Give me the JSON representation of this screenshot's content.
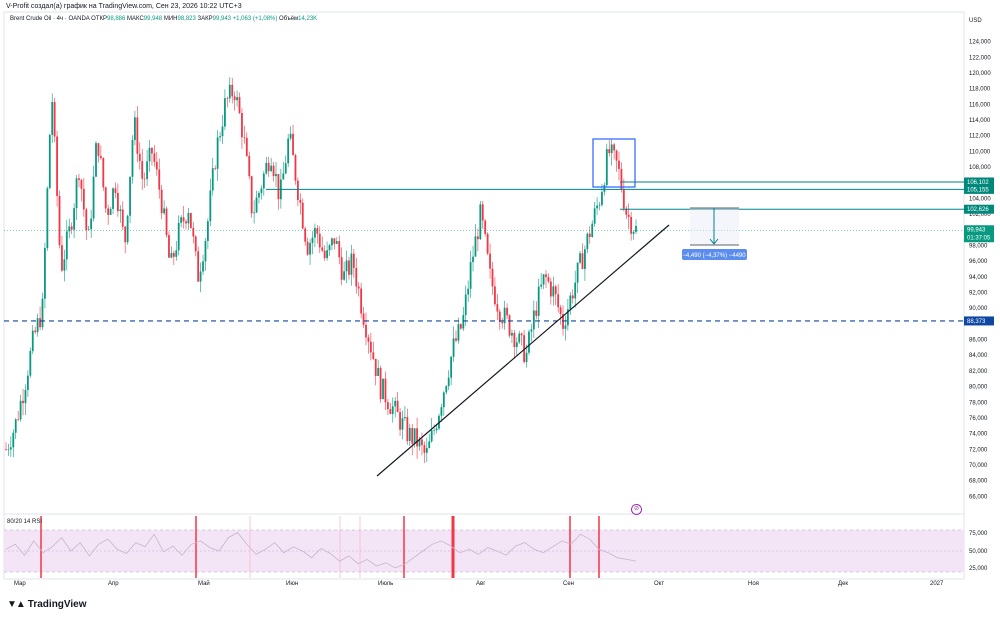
{
  "header": {
    "attribution": "V-Profit создал(а) график на TradingView.com, Сен 23, 2026 10:22 UTC+3",
    "currency": "USD"
  },
  "legend": {
    "symbol": "Brent Crude Oil · 4ч · OANDA",
    "open_label": "ОТКР",
    "open": "98,886",
    "high_label": "МАКС",
    "high": "99,948",
    "low_label": "МИН",
    "low": "98,823",
    "close_label": "ЗАКР",
    "close": "99,943",
    "change": "+1,063 (+1,08%)",
    "volume_label": "Объём",
    "volume": "14,23K"
  },
  "price_labels": {
    "level1": "106,102",
    "level2": "105,155",
    "level3": "102,626",
    "current": "99,943",
    "countdown": "01:37:05",
    "support": "88,373"
  },
  "measure": {
    "text": "−4,490 (−4,37%) −4490"
  },
  "rsi": {
    "label": "80/20 14 RSI",
    "ticks": [
      "75,000",
      "50,000",
      "25,000"
    ],
    "color": "#9c27b0"
  },
  "branding": {
    "logo": "TradingView"
  },
  "colors": {
    "up": "#089981",
    "down": "#f23645",
    "level": "#00838f",
    "support": "#0d47a1",
    "label_bg": "#00897b",
    "rsi_fill": "#f3e5f5"
  },
  "chart_data": {
    "type": "candlestick",
    "symbol": "Brent Crude Oil",
    "ylim": [
      64,
      126
    ],
    "y_ticks": [
      "124,000",
      "122,000",
      "120,000",
      "118,000",
      "116,000",
      "114,000",
      "112,000",
      "110,000",
      "108,000",
      "104,000",
      "102,000",
      "100,000",
      "98,000",
      "96,000",
      "94,000",
      "92,000",
      "90,000",
      "86,000",
      "84,000",
      "82,000",
      "80,000",
      "78,000",
      "76,000",
      "74,000",
      "72,000",
      "70,000",
      "68,000",
      "66,000"
    ],
    "x_ticks": [
      "Мар",
      "Апр",
      "Май",
      "Июн",
      "Июль",
      "Авг",
      "Сен",
      "Окт",
      "Ноя",
      "Дек",
      "2027"
    ],
    "price_path": [
      [
        "Мар",
        72
      ],
      [
        null,
        75
      ],
      [
        null,
        80
      ],
      [
        null,
        86
      ],
      [
        null,
        90
      ],
      [
        null,
        118
      ],
      [
        null,
        95
      ],
      [
        null,
        100
      ],
      [
        null,
        108
      ],
      [
        null,
        98
      ],
      [
        null,
        112
      ],
      [
        null,
        102
      ],
      [
        null,
        106
      ],
      [
        null,
        98
      ],
      [
        "Апр",
        114
      ],
      [
        null,
        106
      ],
      [
        null,
        110
      ],
      [
        null,
        104
      ],
      [
        null,
        95
      ],
      [
        null,
        100
      ],
      [
        null,
        103
      ],
      [
        null,
        94
      ],
      [
        null,
        100
      ],
      [
        null,
        110
      ],
      [
        null,
        116
      ],
      [
        "Май",
        118
      ],
      [
        null,
        112
      ],
      [
        null,
        102
      ],
      [
        null,
        106
      ],
      [
        null,
        110
      ],
      [
        null,
        104
      ],
      [
        null,
        112
      ],
      [
        null,
        105
      ],
      [
        null,
        98
      ],
      [
        null,
        100
      ],
      [
        "Июн",
        96
      ],
      [
        null,
        99
      ],
      [
        null,
        94
      ],
      [
        null,
        96
      ],
      [
        null,
        90
      ],
      [
        null,
        85
      ],
      [
        null,
        80
      ],
      [
        null,
        78
      ],
      [
        null,
        76
      ],
      [
        null,
        74
      ],
      [
        "Июль",
        73
      ],
      [
        null,
        71
      ],
      [
        null,
        75
      ],
      [
        null,
        80
      ],
      [
        null,
        85
      ],
      [
        null,
        88
      ],
      [
        null,
        96
      ],
      [
        null,
        102
      ],
      [
        null,
        94
      ],
      [
        "Авг",
        90
      ],
      [
        null,
        88
      ],
      [
        null,
        86
      ],
      [
        null,
        84
      ],
      [
        null,
        90
      ],
      [
        null,
        94
      ],
      [
        null,
        92
      ],
      [
        null,
        88
      ],
      [
        null,
        92
      ],
      [
        "Сен",
        96
      ],
      [
        null,
        100
      ],
      [
        null,
        104
      ],
      [
        null,
        110
      ],
      [
        null,
        108
      ],
      [
        null,
        102
      ],
      [
        null,
        100
      ]
    ],
    "levels": [
      106.102,
      105.155,
      102.626,
      88.373
    ],
    "current_price": 99.943,
    "trendline": [
      [
        71,
        "Июль"
      ],
      [
        102,
        "Сен"
      ]
    ],
    "measure_range": {
      "from": 102.626,
      "to": 98.136,
      "change": "−4,490 (−4,37%) −4490"
    },
    "rsi_values": [
      52,
      58,
      45,
      62,
      48,
      55,
      66,
      50,
      60,
      44,
      58,
      64,
      52,
      47,
      60,
      55,
      70,
      49,
      56,
      45,
      58,
      62,
      54,
      50,
      66,
      72,
      58,
      46,
      52,
      60,
      48,
      55,
      50,
      42,
      53,
      47,
      38,
      44,
      35,
      40,
      32,
      36,
      30,
      34,
      42,
      50,
      58,
      62,
      56,
      48,
      52,
      46,
      54,
      50,
      45,
      56,
      60,
      52,
      48,
      55,
      62,
      58,
      70,
      64,
      52,
      48,
      42,
      40,
      38
    ],
    "rsi_ylim": [
      0,
      100
    ]
  }
}
